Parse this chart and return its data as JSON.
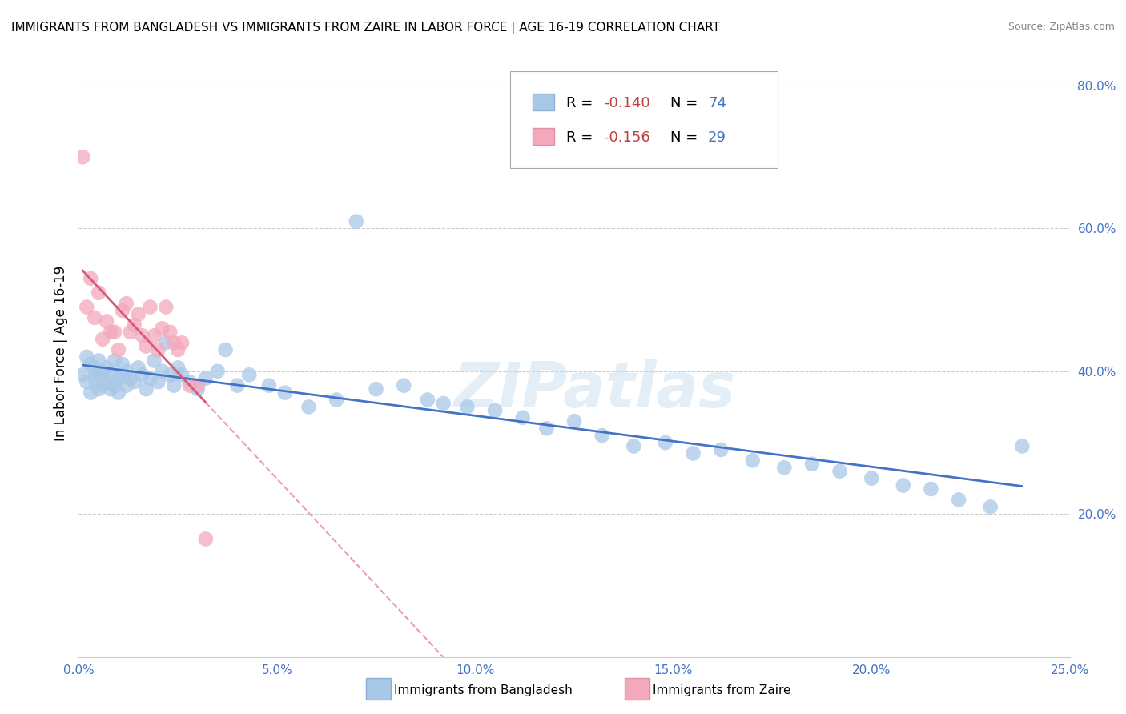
{
  "title": "IMMIGRANTS FROM BANGLADESH VS IMMIGRANTS FROM ZAIRE IN LABOR FORCE | AGE 16-19 CORRELATION CHART",
  "source": "Source: ZipAtlas.com",
  "ylabel": "In Labor Force | Age 16-19",
  "xlim": [
    0.0,
    0.25
  ],
  "ylim": [
    0.0,
    0.85
  ],
  "x_ticks": [
    0.0,
    0.05,
    0.1,
    0.15,
    0.2,
    0.25
  ],
  "y_ticks_right": [
    0.2,
    0.4,
    0.6,
    0.8
  ],
  "legend_r1": "R = ",
  "legend_v1": "-0.140",
  "legend_n1_label": "N = ",
  "legend_n1_val": "74",
  "legend_r2": "R = ",
  "legend_v2": "-0.156",
  "legend_n2_label": "N = ",
  "legend_n2_val": "29",
  "bangladesh_color": "#a8c8e8",
  "zaire_color": "#f4a8bc",
  "bangladesh_line_color": "#4472c4",
  "zaire_line_color": "#d45a78",
  "zaire_dash_color": "#e8a0b0",
  "watermark_text": "ZIPatlas",
  "bangladesh_x": [
    0.001,
    0.002,
    0.002,
    0.003,
    0.003,
    0.004,
    0.004,
    0.005,
    0.005,
    0.005,
    0.006,
    0.006,
    0.007,
    0.007,
    0.008,
    0.008,
    0.009,
    0.009,
    0.01,
    0.01,
    0.011,
    0.011,
    0.012,
    0.012,
    0.013,
    0.014,
    0.015,
    0.016,
    0.017,
    0.018,
    0.019,
    0.02,
    0.021,
    0.022,
    0.023,
    0.024,
    0.025,
    0.026,
    0.028,
    0.03,
    0.032,
    0.035,
    0.037,
    0.04,
    0.043,
    0.048,
    0.052,
    0.058,
    0.065,
    0.07,
    0.075,
    0.082,
    0.088,
    0.092,
    0.098,
    0.105,
    0.112,
    0.118,
    0.125,
    0.132,
    0.14,
    0.148,
    0.155,
    0.162,
    0.17,
    0.178,
    0.185,
    0.192,
    0.2,
    0.208,
    0.215,
    0.222,
    0.23,
    0.238
  ],
  "bangladesh_y": [
    0.395,
    0.42,
    0.385,
    0.37,
    0.41,
    0.39,
    0.405,
    0.375,
    0.395,
    0.415,
    0.38,
    0.4,
    0.385,
    0.405,
    0.375,
    0.395,
    0.38,
    0.415,
    0.39,
    0.37,
    0.395,
    0.41,
    0.38,
    0.4,
    0.39,
    0.385,
    0.405,
    0.395,
    0.375,
    0.39,
    0.415,
    0.385,
    0.4,
    0.44,
    0.395,
    0.38,
    0.405,
    0.395,
    0.385,
    0.375,
    0.39,
    0.4,
    0.43,
    0.38,
    0.395,
    0.38,
    0.37,
    0.35,
    0.36,
    0.61,
    0.375,
    0.38,
    0.36,
    0.355,
    0.35,
    0.345,
    0.335,
    0.32,
    0.33,
    0.31,
    0.295,
    0.3,
    0.285,
    0.29,
    0.275,
    0.265,
    0.27,
    0.26,
    0.25,
    0.24,
    0.235,
    0.22,
    0.21,
    0.295
  ],
  "zaire_x": [
    0.001,
    0.002,
    0.003,
    0.004,
    0.005,
    0.006,
    0.007,
    0.008,
    0.009,
    0.01,
    0.011,
    0.012,
    0.013,
    0.014,
    0.015,
    0.016,
    0.017,
    0.018,
    0.019,
    0.02,
    0.021,
    0.022,
    0.023,
    0.024,
    0.025,
    0.026,
    0.028,
    0.03,
    0.032
  ],
  "zaire_y": [
    0.7,
    0.49,
    0.53,
    0.475,
    0.51,
    0.445,
    0.47,
    0.455,
    0.455,
    0.43,
    0.485,
    0.495,
    0.455,
    0.465,
    0.48,
    0.45,
    0.435,
    0.49,
    0.45,
    0.43,
    0.46,
    0.49,
    0.455,
    0.44,
    0.43,
    0.44,
    0.38,
    0.38,
    0.165
  ],
  "zaire_line_xstart": 0.001,
  "zaire_line_xend": 0.032,
  "zaire_dash_xstart": 0.032,
  "zaire_dash_xend": 0.25,
  "bangladesh_line_xstart": 0.001,
  "bangladesh_line_xend": 0.238
}
